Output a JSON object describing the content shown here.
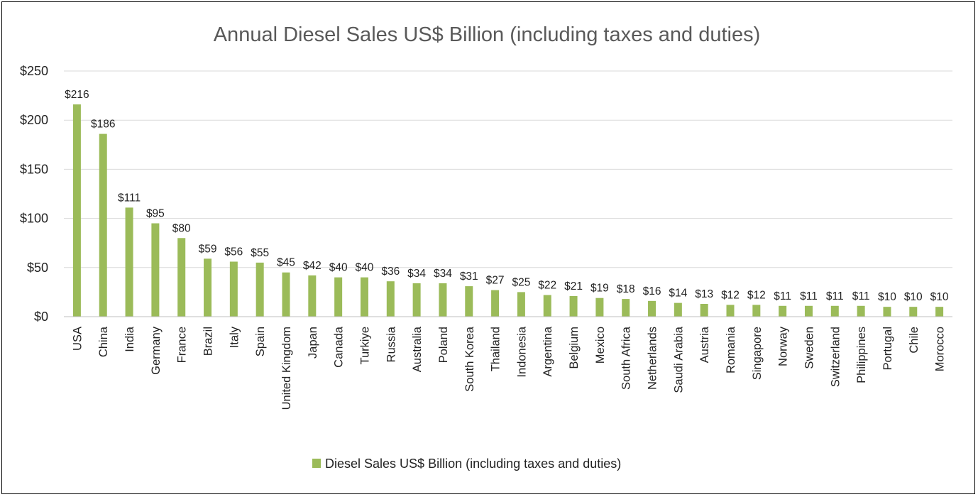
{
  "chart_data": {
    "type": "bar",
    "title": "Annual Diesel Sales US$ Billion (including taxes and duties)",
    "xlabel": "",
    "ylabel": "",
    "ylim": [
      0,
      250
    ],
    "yticks": [
      0,
      50,
      100,
      150,
      200,
      250
    ],
    "ytick_labels": [
      "$0",
      "$50",
      "$100",
      "$150",
      "$200",
      "$250"
    ],
    "grid": true,
    "legend_position": "bottom",
    "bar_color": "#9BBB59",
    "categories": [
      "USA",
      "China",
      "India",
      "Germany",
      "France",
      "Brazil",
      "Italy",
      "Spain",
      "United Kingdom",
      "Japan",
      "Canada",
      "Turkiye",
      "Russia",
      "Australia",
      "Poland",
      "South Korea",
      "Thailand",
      "Indonesia",
      "Argentina",
      "Belgium",
      "Mexico",
      "South Africa",
      "Netherlands",
      "Saudi Arabia",
      "Austria",
      "Romania",
      "Singapore",
      "Norway",
      "Sweden",
      "Switzerland",
      "Philippines",
      "Portugal",
      "Chile",
      "Morocco"
    ],
    "series": [
      {
        "name": "Diesel Sales US$ Billion (including taxes and duties)",
        "values": [
          216,
          186,
          111,
          95,
          80,
          59,
          56,
          55,
          45,
          42,
          40,
          40,
          36,
          34,
          34,
          31,
          27,
          25,
          22,
          21,
          19,
          18,
          16,
          14,
          13,
          12,
          12,
          11,
          11,
          11,
          11,
          10,
          10,
          10
        ]
      }
    ],
    "data_labels": [
      "$216",
      "$186",
      "$111",
      "$95",
      "$80",
      "$59",
      "$56",
      "$55",
      "$45",
      "$42",
      "$40",
      "$40",
      "$36",
      "$34",
      "$34",
      "$31",
      "$27",
      "$25",
      "$22",
      "$21",
      "$19",
      "$18",
      "$16",
      "$14",
      "$13",
      "$12",
      "$12",
      "$11",
      "$11",
      "$11",
      "$11",
      "$10",
      "$10",
      "$10"
    ]
  }
}
